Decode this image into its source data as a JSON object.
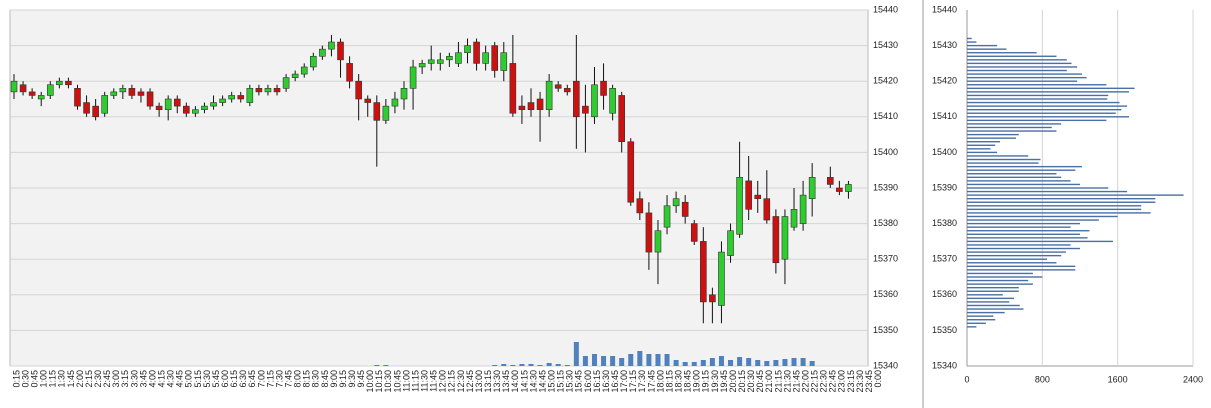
{
  "chart_data": [
    {
      "type": "candlestick",
      "categories": [
        "0:15",
        "0:30",
        "0:45",
        "1:00",
        "1:15",
        "1:30",
        "1:45",
        "2:00",
        "2:15",
        "2:30",
        "2:45",
        "3:00",
        "3:15",
        "3:30",
        "3:45",
        "4:00",
        "4:15",
        "4:30",
        "4:45",
        "5:00",
        "5:15",
        "5:30",
        "5:45",
        "6:00",
        "6:15",
        "6:30",
        "6:45",
        "7:00",
        "7:15",
        "7:30",
        "7:45",
        "8:00",
        "8:15",
        "8:30",
        "8:45",
        "9:00",
        "9:15",
        "9:30",
        "9:45",
        "10:00",
        "10:15",
        "10:30",
        "10:45",
        "11:00",
        "11:15",
        "11:30",
        "11:45",
        "12:00",
        "12:15",
        "12:30",
        "12:45",
        "13:00",
        "13:15",
        "13:30",
        "13:45",
        "14:00",
        "14:15",
        "14:30",
        "14:45",
        "15:00",
        "15:15",
        "15:30",
        "15:45",
        "16:00",
        "16:15",
        "16:30",
        "16:45",
        "17:00",
        "17:15",
        "17:30",
        "17:45",
        "18:00",
        "18:15",
        "18:30",
        "18:45",
        "19:00",
        "19:15",
        "19:30",
        "19:45",
        "20:00",
        "20:15",
        "20:30",
        "20:45",
        "21:00",
        "21:15",
        "21:30",
        "21:45",
        "22:00",
        "22:15",
        "22:30",
        "22:45",
        "23:00",
        "23:15",
        "23:30",
        "23:45",
        "0:00"
      ],
      "open": [
        15417,
        15419,
        15417,
        15415,
        15416,
        15419,
        15420,
        15418,
        15414,
        15413,
        15411,
        15416,
        15417,
        15418,
        15417,
        15417,
        15413,
        15412,
        15415,
        15413,
        15411,
        15412,
        15413,
        15414,
        15415,
        15416,
        15414,
        15418,
        15417,
        15418,
        15418,
        15421,
        15422,
        15424,
        15427,
        15429,
        15431,
        15425,
        15420,
        15415,
        15414,
        15409,
        15413,
        15415,
        15418,
        15424,
        15425,
        15425,
        15426,
        15425,
        15428,
        15431,
        15425,
        15430,
        15423,
        15425,
        15413,
        15414,
        15415,
        15412,
        15419,
        15418,
        15420,
        15413,
        15410,
        15420,
        15411,
        15416,
        15403,
        15387,
        15383,
        15372,
        15379,
        15385,
        15386,
        15380,
        15375,
        15360,
        15357,
        15371,
        15377,
        15392,
        15388,
        15387,
        15382,
        15370,
        15379,
        15380,
        15387,
        null,
        15393,
        15390,
        15389,
        null,
        null,
        null
      ],
      "high": [
        15422,
        15420,
        15418,
        15417,
        15420,
        15421,
        15421,
        15419,
        15416,
        15415,
        15417,
        15418,
        15419,
        15419,
        15418,
        15418,
        15414,
        15416,
        15416,
        15414,
        15413,
        15414,
        15416,
        15416,
        15417,
        15417,
        15419,
        15419,
        15419,
        15419,
        15422,
        15423,
        15425,
        15428,
        15430,
        15433,
        15432,
        15427,
        15422,
        15416,
        15416,
        15415,
        15417,
        15420,
        15426,
        15426,
        15430,
        15428,
        15428,
        15431,
        15432,
        15432,
        15430,
        15431,
        15431,
        15433,
        15416,
        15418,
        15417,
        15422,
        15420,
        15419,
        15433,
        15419,
        15424,
        15425,
        15419,
        15417,
        15404,
        15389,
        15386,
        15381,
        15388,
        15389,
        15388,
        15381,
        15379,
        15362,
        15375,
        15380,
        15403,
        15399,
        15392,
        15395,
        15384,
        15384,
        15390,
        15392,
        15397,
        null,
        15396,
        15392,
        15392,
        null,
        null,
        null
      ],
      "low": [
        15415,
        15416,
        15415,
        15413,
        15415,
        15418,
        15418,
        15412,
        15410,
        15409,
        15410,
        15415,
        15415,
        15415,
        15414,
        15412,
        15410,
        15409,
        15411,
        15410,
        15410,
        15411,
        15412,
        15413,
        15414,
        15414,
        15413,
        15416,
        15416,
        15416,
        15417,
        15420,
        15421,
        15423,
        15426,
        15427,
        15421,
        15418,
        15409,
        15410,
        15396,
        15408,
        15411,
        15412,
        15412,
        15422,
        15423,
        15423,
        15424,
        15424,
        15425,
        15423,
        15423,
        15421,
        15420,
        15410,
        15408,
        15410,
        15403,
        15410,
        15417,
        15416,
        15401,
        15400,
        15408,
        15412,
        15409,
        15400,
        15385,
        15381,
        15367,
        15363,
        15377,
        15383,
        15380,
        15374,
        15352,
        15352,
        15352,
        15369,
        15376,
        15381,
        15383,
        15380,
        15366,
        15363,
        15378,
        15378,
        15382,
        null,
        15390,
        15388,
        15387,
        null,
        null,
        null
      ],
      "close": [
        15420,
        15417,
        15416,
        15416,
        15419,
        15420,
        15419,
        15413,
        15411,
        15410,
        15416,
        15417,
        15418,
        15416,
        15416,
        15413,
        15412,
        15415,
        15413,
        15411,
        15412,
        15413,
        15414,
        15415,
        15416,
        15415,
        15418,
        15417,
        15418,
        15417,
        15421,
        15422,
        15424,
        15427,
        15429,
        15431,
        15426,
        15420,
        15415,
        15414,
        15409,
        15413,
        15415,
        15418,
        15424,
        15425,
        15426,
        15426,
        15427,
        15428,
        15430,
        15425,
        15428,
        15423,
        15428,
        15411,
        15412,
        15412,
        15412,
        15420,
        15418,
        15417,
        15410,
        15411,
        15419,
        15416,
        15418,
        15403,
        15386,
        15383,
        15372,
        15378,
        15385,
        15387,
        15382,
        15375,
        15358,
        15358,
        15372,
        15378,
        15393,
        15384,
        15387,
        15381,
        15369,
        15382,
        15384,
        15388,
        15393,
        null,
        15391,
        15389,
        15391,
        null,
        null,
        null
      ],
      "volume": [
        0,
        0,
        0,
        0,
        0,
        0,
        0,
        0,
        0,
        0,
        0,
        0,
        0,
        0,
        0,
        0,
        0,
        0,
        0,
        0,
        0,
        0,
        0,
        0,
        0,
        0,
        0,
        0,
        0,
        0,
        0,
        0,
        0,
        0,
        0,
        0,
        0,
        0,
        0,
        0,
        1,
        1,
        0,
        0,
        0,
        0,
        0,
        0,
        0,
        0,
        0,
        0,
        0,
        1,
        2,
        1,
        2,
        2,
        1,
        3,
        2,
        1,
        24,
        10,
        12,
        10,
        10,
        8,
        12,
        15,
        12,
        12,
        12,
        6,
        4,
        4,
        6,
        8,
        10,
        6,
        9,
        8,
        6,
        5,
        6,
        7,
        8,
        8,
        5,
        null,
        0,
        0,
        0,
        null,
        null,
        null
      ],
      "ylim": [
        15340,
        15440
      ],
      "yticks": [
        15340,
        15350,
        15360,
        15370,
        15380,
        15390,
        15400,
        15410,
        15420,
        15430,
        15440
      ],
      "grid": true,
      "up_color": "#2ecc2e",
      "down_color": "#cc1111",
      "volume_color": "#4f81bd"
    },
    {
      "type": "barh",
      "levels": [
        15432,
        15431,
        15430,
        15429,
        15428,
        15427,
        15426,
        15425,
        15424,
        15423,
        15422,
        15421,
        15420,
        15419,
        15418,
        15417,
        15416,
        15415,
        15414,
        15413,
        15412,
        15411,
        15410,
        15409,
        15408,
        15407,
        15406,
        15405,
        15404,
        15403,
        15402,
        15401,
        15400,
        15399,
        15398,
        15397,
        15396,
        15395,
        15394,
        15393,
        15392,
        15391,
        15390,
        15389,
        15388,
        15387,
        15386,
        15385,
        15384,
        15383,
        15382,
        15381,
        15380,
        15379,
        15378,
        15377,
        15376,
        15375,
        15374,
        15373,
        15372,
        15371,
        15370,
        15369,
        15368,
        15367,
        15366,
        15365,
        15364,
        15363,
        15362,
        15361,
        15360,
        15359,
        15358,
        15357,
        15356,
        15355,
        15354,
        15353,
        15352,
        15351
      ],
      "values": [
        50,
        100,
        320,
        420,
        740,
        950,
        1060,
        1110,
        1170,
        1060,
        1220,
        1270,
        1170,
        1480,
        1780,
        1720,
        1500,
        1490,
        1620,
        1700,
        1640,
        1580,
        1720,
        1480,
        1000,
        900,
        950,
        550,
        520,
        350,
        300,
        250,
        320,
        650,
        780,
        760,
        1220,
        1150,
        950,
        1000,
        1100,
        1200,
        1500,
        1700,
        2300,
        2000,
        2000,
        1850,
        1850,
        1950,
        1600,
        1400,
        1200,
        1100,
        1300,
        1200,
        1280,
        1550,
        1100,
        1200,
        1050,
        1000,
        850,
        950,
        1150,
        1150,
        700,
        800,
        650,
        700,
        550,
        550,
        380,
        500,
        450,
        560,
        600,
        400,
        280,
        300,
        200,
        100
      ],
      "xlim": [
        0,
        2400
      ],
      "xticks": [
        0,
        800,
        1600,
        2400
      ],
      "ylim": [
        15340,
        15440
      ],
      "yticks": [
        15340,
        15350,
        15360,
        15370,
        15380,
        15390,
        15400,
        15410,
        15420,
        15430,
        15440
      ],
      "grid": true,
      "color": "#4a6fa5"
    }
  ]
}
